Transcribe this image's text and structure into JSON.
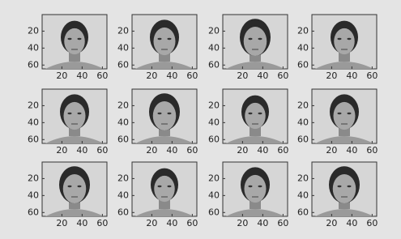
{
  "chart_data": [
    {
      "type": "image",
      "xlim": [
        0.5,
        64.5
      ],
      "ylim": [
        0.5,
        64.5
      ],
      "xticks": [
        20,
        40,
        60
      ],
      "yticks": [
        20,
        40,
        60
      ]
    },
    {
      "type": "image",
      "xlim": [
        0.5,
        64.5
      ],
      "ylim": [
        0.5,
        64.5
      ],
      "xticks": [
        20,
        40,
        60
      ],
      "yticks": [
        20,
        40,
        60
      ]
    },
    {
      "type": "image",
      "xlim": [
        0.5,
        64.5
      ],
      "ylim": [
        0.5,
        64.5
      ],
      "xticks": [
        20,
        40,
        60
      ],
      "yticks": [
        20,
        40,
        60
      ]
    },
    {
      "type": "image",
      "xlim": [
        0.5,
        64.5
      ],
      "ylim": [
        0.5,
        64.5
      ],
      "xticks": [
        20,
        40,
        60
      ],
      "yticks": [
        20,
        40,
        60
      ]
    },
    {
      "type": "image",
      "xlim": [
        0.5,
        64.5
      ],
      "ylim": [
        0.5,
        64.5
      ],
      "xticks": [
        20,
        40,
        60
      ],
      "yticks": [
        20,
        40,
        60
      ]
    },
    {
      "type": "image",
      "xlim": [
        0.5,
        64.5
      ],
      "ylim": [
        0.5,
        64.5
      ],
      "xticks": [
        20,
        40,
        60
      ],
      "yticks": [
        20,
        40,
        60
      ]
    },
    {
      "type": "image",
      "xlim": [
        0.5,
        64.5
      ],
      "ylim": [
        0.5,
        64.5
      ],
      "xticks": [
        20,
        40,
        60
      ],
      "yticks": [
        20,
        40,
        60
      ]
    },
    {
      "type": "image",
      "xlim": [
        0.5,
        64.5
      ],
      "ylim": [
        0.5,
        64.5
      ],
      "xticks": [
        20,
        40,
        60
      ],
      "yticks": [
        20,
        40,
        60
      ]
    },
    {
      "type": "image",
      "xlim": [
        0.5,
        64.5
      ],
      "ylim": [
        0.5,
        64.5
      ],
      "xticks": [
        20,
        40,
        60
      ],
      "yticks": [
        20,
        40,
        60
      ]
    },
    {
      "type": "image",
      "xlim": [
        0.5,
        64.5
      ],
      "ylim": [
        0.5,
        64.5
      ],
      "xticks": [
        20,
        40,
        60
      ],
      "yticks": [
        20,
        40,
        60
      ]
    },
    {
      "type": "image",
      "xlim": [
        0.5,
        64.5
      ],
      "ylim": [
        0.5,
        64.5
      ],
      "xticks": [
        20,
        40,
        60
      ],
      "yticks": [
        20,
        40,
        60
      ]
    },
    {
      "type": "image",
      "xlim": [
        0.5,
        64.5
      ],
      "ylim": [
        0.5,
        64.5
      ],
      "xticks": [
        20,
        40,
        60
      ],
      "yticks": [
        20,
        40,
        60
      ]
    }
  ]
}
